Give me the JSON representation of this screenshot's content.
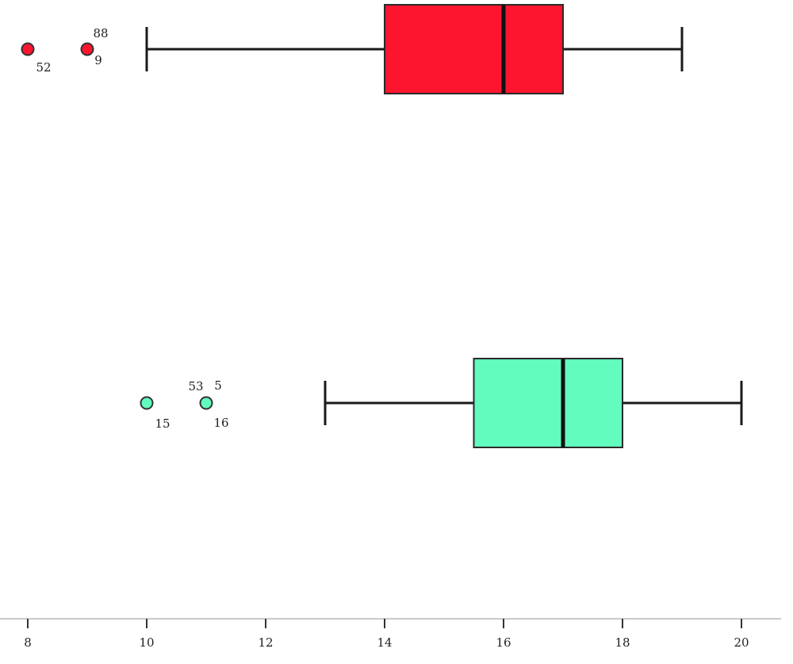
{
  "chart_data": {
    "type": "boxplot",
    "orientation": "horizontal",
    "xlim": [
      7.8,
      20.6
    ],
    "x_ticks": [
      "8",
      "10",
      "12",
      "14",
      "16",
      "18",
      "20"
    ],
    "grid": false,
    "series": [
      {
        "color": "#fd1530",
        "whisker_low": 10,
        "q1": 14,
        "median": 16,
        "q3": 17,
        "whisker_high": 19,
        "outliers": [
          {
            "value": 8,
            "labels": [
              "52"
            ]
          },
          {
            "value": 9,
            "labels": [
              "88",
              "9"
            ]
          }
        ]
      },
      {
        "color": "#62fcbe",
        "whisker_low": 13,
        "q1": 15.5,
        "median": 17,
        "q3": 18,
        "whisker_high": 20,
        "outliers": [
          {
            "value": 10,
            "labels": [
              "15"
            ]
          },
          {
            "value": 11,
            "labels": [
              "53",
              "5",
              "16"
            ]
          }
        ]
      }
    ]
  }
}
